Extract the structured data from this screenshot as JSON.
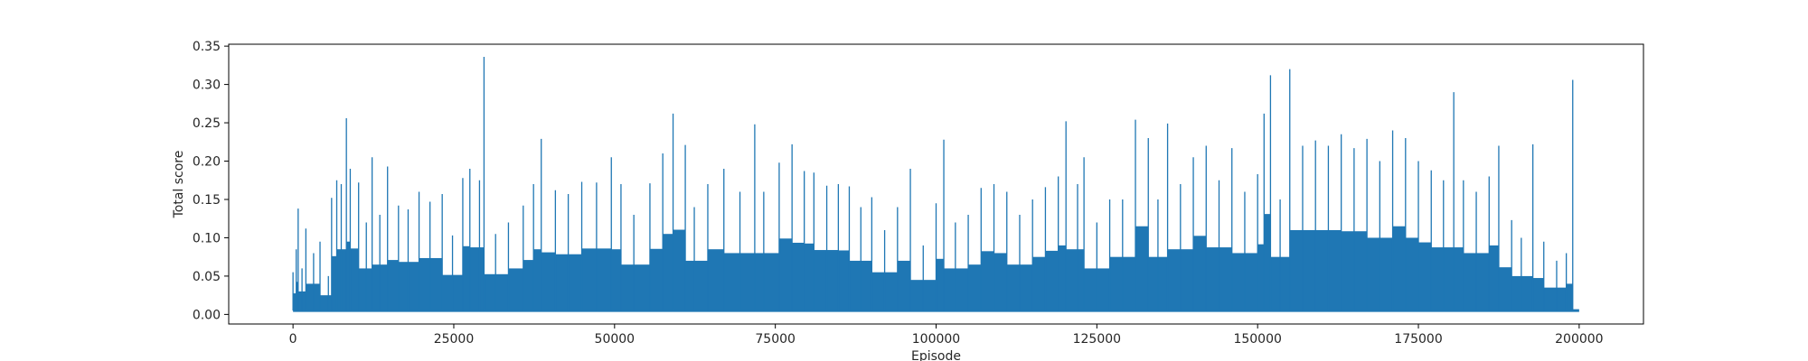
{
  "chart_data": {
    "type": "line",
    "title": "",
    "xlabel": "Episode",
    "ylabel": "Total score",
    "xlim": [
      -10000,
      210000
    ],
    "ylim": [
      -0.0125,
      0.3525
    ],
    "xticks": [
      0,
      25000,
      50000,
      75000,
      100000,
      125000,
      150000,
      175000,
      200000
    ],
    "xtick_labels": [
      "0",
      "25000",
      "50000",
      "75000",
      "100000",
      "125000",
      "150000",
      "175000",
      "200000"
    ],
    "yticks": [
      0.0,
      0.05,
      0.1,
      0.15,
      0.2,
      0.25,
      0.3,
      0.35
    ],
    "ytick_labels": [
      "0.00",
      "0.05",
      "0.10",
      "0.15",
      "0.20",
      "0.25",
      "0.30",
      "0.35"
    ],
    "grid": false,
    "color": "#1f77b4",
    "baseline": 0.005,
    "series": [
      {
        "x": [
          0,
          500,
          800,
          1400,
          2000,
          3200,
          4200,
          5500,
          6000,
          6800,
          7500,
          8300,
          8900,
          10200,
          11400,
          12300,
          13500,
          14700,
          16400,
          17900,
          19600,
          21300,
          23200,
          24800,
          26400,
          27500,
          29000,
          29700,
          31500,
          33500,
          35800,
          37400,
          38600,
          40800,
          42800,
          44900,
          47200,
          49500,
          51000,
          53000,
          55500,
          57500,
          59100,
          61000,
          62400,
          64500,
          67000,
          69500,
          71800,
          73200,
          75600,
          77600,
          79500,
          81000,
          83000,
          84800,
          86500,
          88300,
          90000,
          92000,
          94000,
          96000,
          98000,
          100000,
          101200,
          103000,
          105000,
          107000,
          109000,
          111000,
          113000,
          115000,
          117000,
          119000,
          120200,
          122000,
          123000,
          125000,
          127000,
          129000,
          131000,
          133000,
          134500,
          136000,
          138000,
          140000,
          142000,
          144000,
          146000,
          148000,
          150000,
          151000,
          152000,
          153500,
          155000,
          157000,
          159000,
          161000,
          163000,
          165000,
          167000,
          169000,
          171000,
          173000,
          175000,
          177000,
          178900,
          180500,
          182000,
          184000,
          186000,
          187500,
          189500,
          191000,
          192800,
          194500,
          196500,
          198000,
          199000,
          199700,
          200000
        ],
        "y": [
          0.055,
          0.085,
          0.138,
          0.06,
          0.112,
          0.08,
          0.095,
          0.05,
          0.152,
          0.175,
          0.17,
          0.256,
          0.19,
          0.172,
          0.12,
          0.205,
          0.13,
          0.193,
          0.142,
          0.137,
          0.16,
          0.147,
          0.157,
          0.103,
          0.178,
          0.19,
          0.175,
          0.336,
          0.105,
          0.12,
          0.142,
          0.17,
          0.229,
          0.162,
          0.157,
          0.173,
          0.172,
          0.205,
          0.17,
          0.13,
          0.171,
          0.21,
          0.262,
          0.221,
          0.14,
          0.17,
          0.19,
          0.16,
          0.248,
          0.16,
          0.198,
          0.222,
          0.187,
          0.185,
          0.168,
          0.17,
          0.167,
          0.14,
          0.153,
          0.11,
          0.14,
          0.19,
          0.09,
          0.145,
          0.228,
          0.12,
          0.13,
          0.165,
          0.17,
          0.16,
          0.13,
          0.15,
          0.166,
          0.18,
          0.252,
          0.17,
          0.205,
          0.12,
          0.15,
          0.15,
          0.254,
          0.23,
          0.15,
          0.249,
          0.17,
          0.205,
          0.22,
          0.175,
          0.217,
          0.16,
          0.183,
          0.262,
          0.312,
          0.15,
          0.32,
          0.22,
          0.227,
          0.22,
          0.235,
          0.217,
          0.229,
          0.2,
          0.24,
          0.23,
          0.2,
          0.188,
          0.175,
          0.29,
          0.175,
          0.16,
          0.18,
          0.22,
          0.123,
          0.1,
          0.222,
          0.095,
          0.07,
          0.08,
          0.306,
          0.005,
          0.005
        ]
      }
    ]
  }
}
